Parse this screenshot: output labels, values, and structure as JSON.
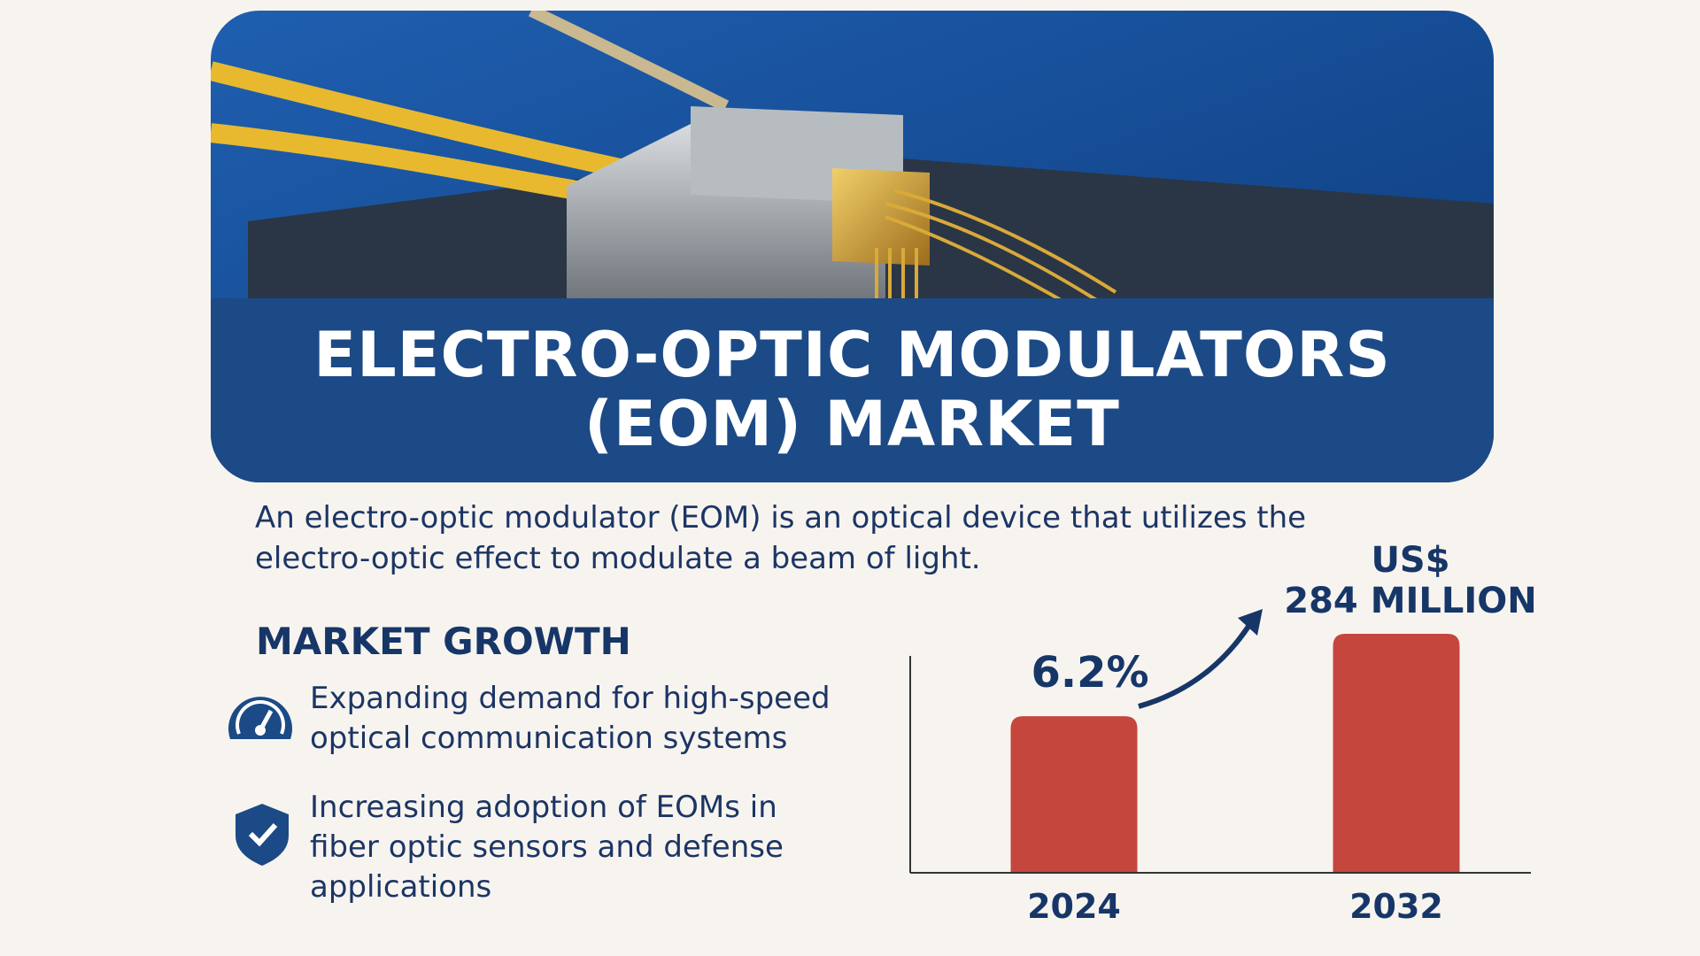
{
  "header": {
    "title_lines": [
      "ELECTRO-OPTIC MODULATORS",
      "(EOM) MARKET"
    ]
  },
  "description": "An electro-optic modulator (EOM) is an optical device that utilizes the electro-optic effect to modulate a beam of light.",
  "section_title": "MARKET GROWTH",
  "bullets": [
    "Expanding demand for high-speed optical communication systems",
    "Increasing adoption of EOMs in fiber optic sensors and defense applications"
  ],
  "chart_data": {
    "type": "bar",
    "categories": [
      "2024",
      "2032"
    ],
    "values": [
      186,
      284
    ],
    "value_labels": [
      null,
      "US$\n284 MILLION"
    ],
    "annotation": "6.2%",
    "color": "#c4463d"
  }
}
